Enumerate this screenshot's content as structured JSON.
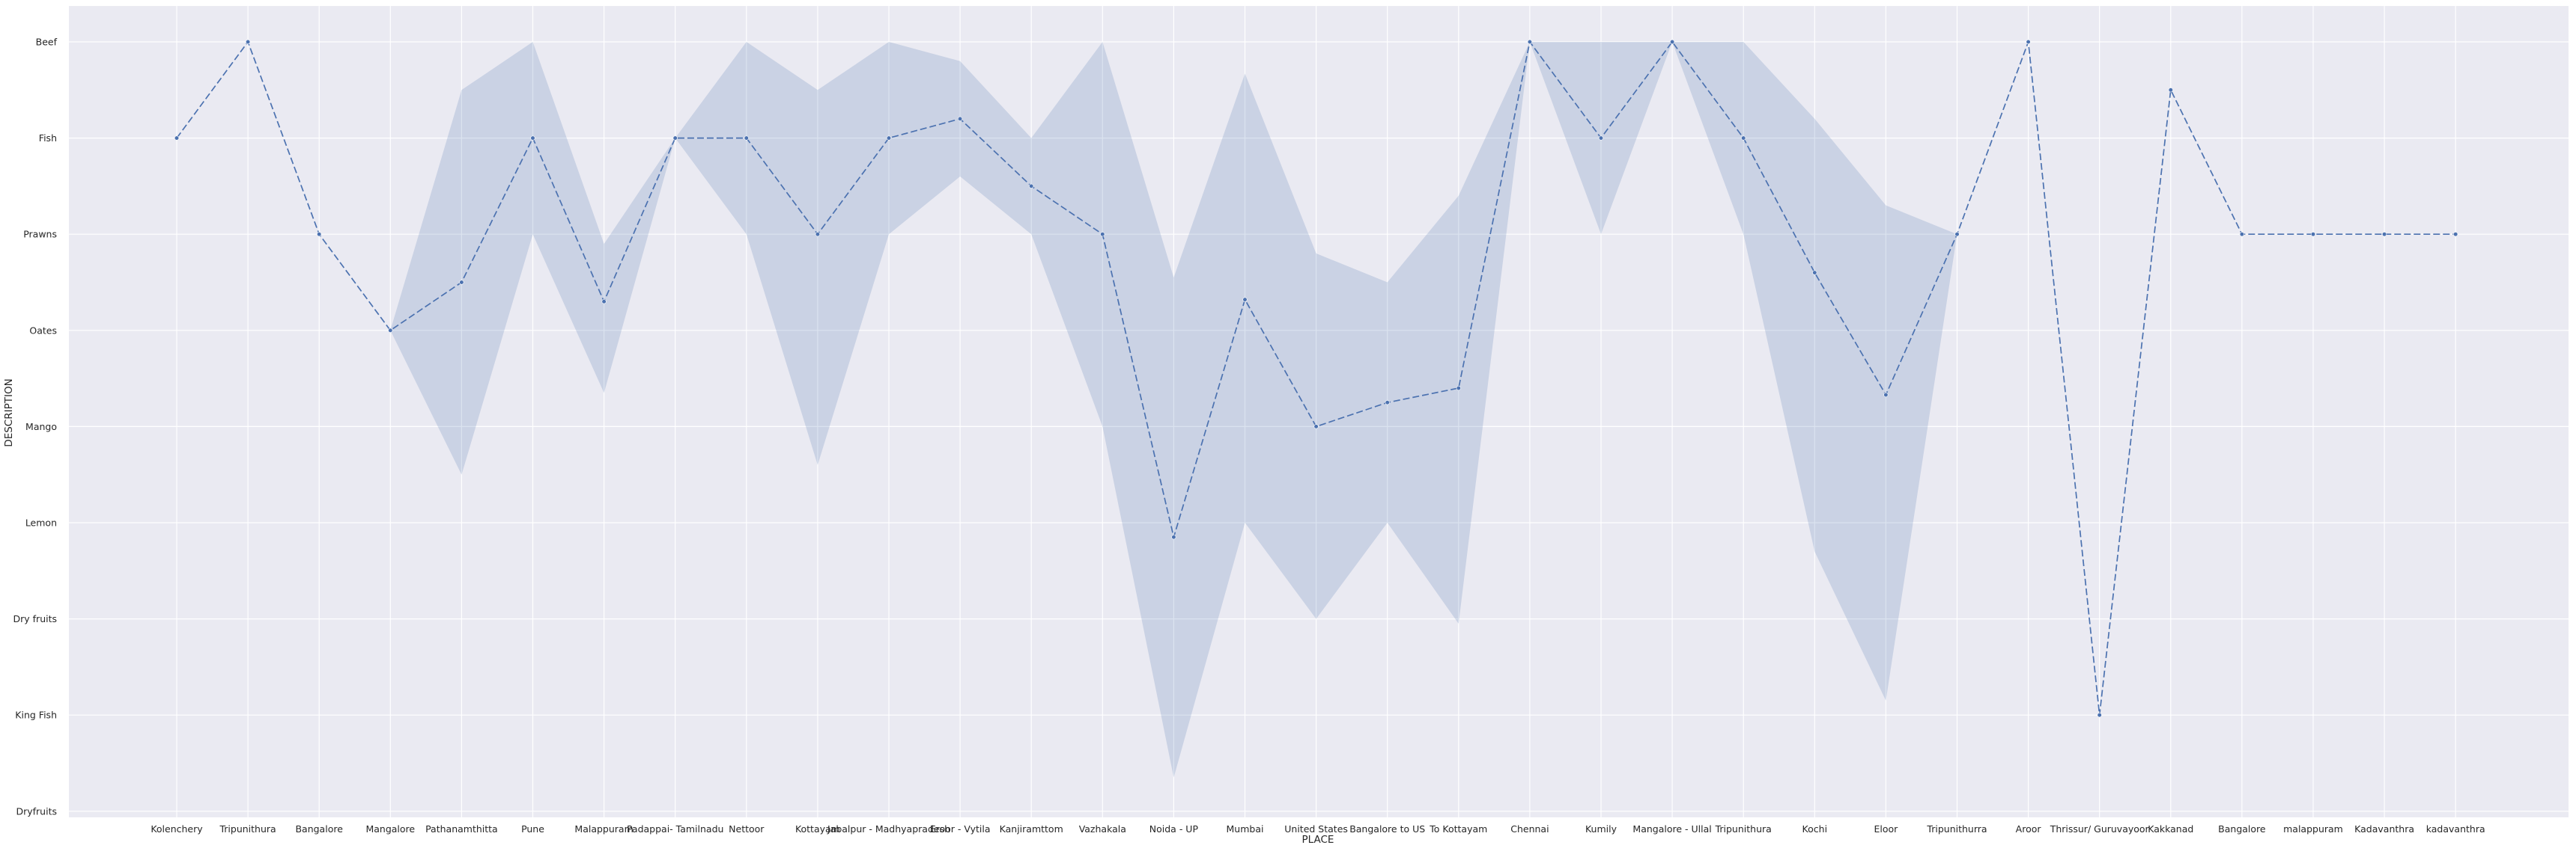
{
  "chart_data": {
    "type": "line",
    "xlabel": "PLACE",
    "ylabel": "DESCRIPTION",
    "categories": [
      "Kolenchery",
      "Tripunithura",
      "Bangalore",
      "Mangalore",
      "Pathanamthitta",
      "Pune",
      "Malappuram",
      "Padappai- Tamilnadu",
      "Nettoor",
      "Kottayam",
      "Jabalpur - Madhyapradesh",
      "Eroor - Vytila",
      "Kanjiramttom",
      "Vazhakala",
      "Noida - UP",
      "Mumbai",
      "United States",
      "Bangalore to US",
      "To Kottayam",
      "Chennai",
      "Kumily",
      "Mangalore - Ullal",
      "Tripunithura",
      "Kochi",
      "Eloor",
      "Tripunithurra",
      "Aroor",
      "Thrissur/ Guruvayoor",
      "Kakkanad",
      "Bangalore",
      "malappuram",
      "Kadavanthra",
      "kadavanthra"
    ],
    "y_categories": [
      "Beef",
      "Fish",
      "Prawns",
      "Oates",
      "Mango",
      "Lemon",
      "Dry fruits",
      "King Fish",
      "Dryfruits"
    ],
    "y_order": "Beef at top = 0, Dryfruits at bottom = 8",
    "series": [
      {
        "values": [
          1,
          0,
          2,
          3,
          2.5,
          1,
          2.7,
          1,
          1,
          2,
          1,
          0.8,
          1.5,
          2,
          5.15,
          2.68,
          4,
          3.75,
          3.6,
          0,
          1,
          0,
          1,
          2.4,
          3.67,
          2,
          0,
          7,
          0.5,
          2,
          2,
          2,
          2
        ],
        "ci_low": [
          1,
          0,
          2,
          3,
          0.5,
          0,
          2.1,
          1,
          0,
          0.5,
          0,
          0.2,
          1,
          0,
          2.45,
          0.33,
          2.2,
          2.5,
          1.6,
          0,
          0,
          0,
          0,
          0.8,
          1.7,
          2,
          0,
          7,
          0.5,
          2,
          2,
          2,
          2
        ],
        "ci_high": [
          1,
          0,
          2,
          3,
          4.5,
          2,
          3.65,
          1,
          2,
          4.4,
          2,
          1.4,
          2,
          4,
          7.65,
          5,
          6,
          5,
          6.05,
          0,
          2,
          0,
          2,
          5.3,
          6.85,
          2,
          0,
          7,
          0.5,
          2,
          2,
          2,
          2
        ]
      }
    ],
    "grid": true,
    "line_style": "dashed",
    "marker": "circle",
    "colors": {
      "plot_background": "#eaeaf2",
      "grid": "#ffffff",
      "line": "#4c72b0",
      "band": "#4c72b0"
    }
  }
}
